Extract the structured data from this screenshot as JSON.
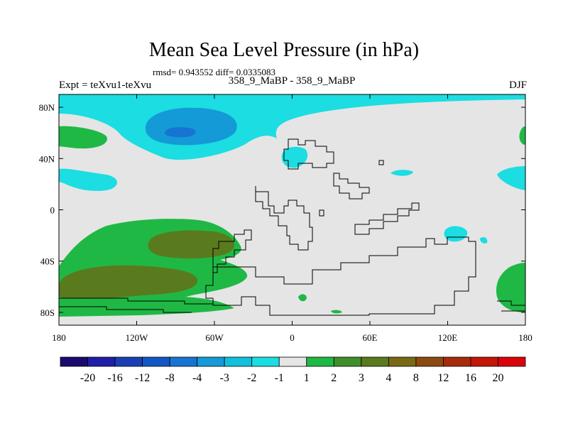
{
  "title": "Mean Sea Level Pressure (in hPa)",
  "stats": "rmsd= 0.943552 diff= 0.0335083",
  "left_label": "Expt = teXvu1-teXvu",
  "center_label": "358_9_MaBP - 358_9_MaBP",
  "right_label": "DJF",
  "map_data": {
    "type": "contour-map",
    "x_range": [
      -180,
      180
    ],
    "y_range": [
      -90,
      90
    ],
    "x_ticks": [
      {
        "value": -180,
        "label": "180"
      },
      {
        "value": -120,
        "label": "120W"
      },
      {
        "value": -60,
        "label": "60W"
      },
      {
        "value": 0,
        "label": "0"
      },
      {
        "value": 60,
        "label": "60E"
      },
      {
        "value": 120,
        "label": "120E"
      },
      {
        "value": 180,
        "label": "180"
      }
    ],
    "y_ticks": [
      {
        "value": 80,
        "label": "80N"
      },
      {
        "value": 40,
        "label": "40N"
      },
      {
        "value": 0,
        "label": "0"
      },
      {
        "value": -40,
        "label": "40S"
      },
      {
        "value": -80,
        "label": "80S"
      }
    ]
  },
  "colorbar": {
    "labels": [
      "-20",
      "-16",
      "-12",
      "-8",
      "-4",
      "-3",
      "-2",
      "-1",
      "1",
      "2",
      "3",
      "4",
      "8",
      "12",
      "16",
      "20"
    ],
    "colors": [
      "#1a0a6e",
      "#1f1ea8",
      "#1a3fb5",
      "#1158c6",
      "#1774d3",
      "#149ad6",
      "#10c0dc",
      "#1bdde2",
      "#e5e5e5",
      "#1fb845",
      "#3f8e2a",
      "#5a7a1e",
      "#7a6814",
      "#8c4a10",
      "#a52b0a",
      "#c21606",
      "#d8040a"
    ],
    "swatch_order": [
      "-20 below",
      "-20",
      "-16",
      "-12",
      "-8",
      "-4",
      "-3",
      "-2",
      "-1",
      "1",
      "2",
      "3",
      "4",
      "8",
      "12",
      "16",
      "20"
    ]
  },
  "palette": {
    "background": "#e5e5e5",
    "cyan": "#1bdde2",
    "cyan_dark": "#10c0dc",
    "blue_core": "#149ad6",
    "green": "#1fb845",
    "olive": "#5a7a1e"
  }
}
